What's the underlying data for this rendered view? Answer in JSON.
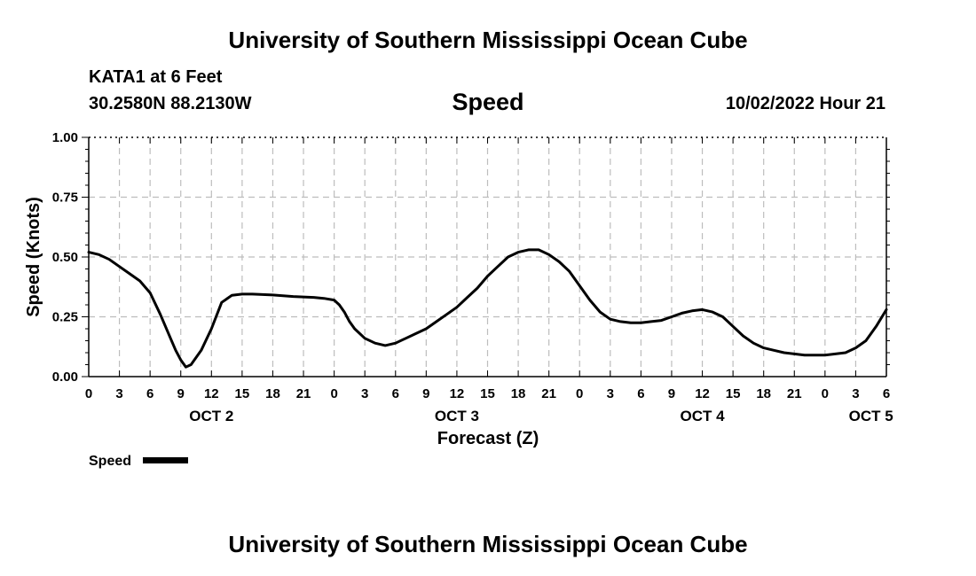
{
  "header": {
    "title": "University of Southern Mississippi Ocean Cube",
    "station": "KATA1 at 6 Feet",
    "coords": "30.2580N  88.2130W",
    "plot_title": "Speed",
    "date": "10/02/2022 Hour 21",
    "footer_title": "University of Southern Mississippi Ocean Cube"
  },
  "chart_data": {
    "type": "line",
    "title": "Speed",
    "xlabel": "Forecast (Z)",
    "ylabel": "Speed (Knots)",
    "ylim": [
      0,
      1.0
    ],
    "xlim": [
      0,
      78
    ],
    "yticks": [
      0.0,
      0.25,
      0.5,
      0.75,
      1.0
    ],
    "ytick_labels": [
      "0.00",
      "0.25",
      "0.50",
      "0.75",
      "1.00"
    ],
    "xtick_labels": [
      "0",
      "3",
      "6",
      "9",
      "12",
      "15",
      "18",
      "21",
      "0",
      "3",
      "6",
      "9",
      "12",
      "15",
      "18",
      "21",
      "0",
      "3",
      "6",
      "9",
      "12",
      "15",
      "18",
      "21",
      "0",
      "3",
      "6"
    ],
    "day_labels": [
      {
        "label": "OCT 2",
        "hour": 12
      },
      {
        "label": "OCT 3",
        "hour": 36
      },
      {
        "label": "OCT 4",
        "hour": 60
      },
      {
        "label": "OCT 5",
        "hour": 76.5
      }
    ],
    "grid": true,
    "legend": {
      "position": "bottom-left",
      "label": "Speed"
    },
    "series": [
      {
        "name": "Speed",
        "color": "#000000",
        "x": [
          0,
          1,
          2,
          3,
          4,
          5,
          6,
          7,
          8,
          8.5,
          9,
          9.5,
          10,
          11,
          12,
          13,
          14,
          15,
          16,
          17,
          18,
          19,
          20,
          21,
          22,
          23,
          24,
          24.5,
          25,
          25.5,
          26,
          27,
          28,
          29,
          30,
          31,
          32,
          33,
          34,
          35,
          36,
          37,
          38,
          39,
          40,
          41,
          42,
          43,
          44,
          45,
          46,
          47,
          48,
          49,
          50,
          51,
          52,
          53,
          54,
          55,
          56,
          57,
          58,
          59,
          60,
          61,
          62,
          63,
          64,
          65,
          66,
          67,
          68,
          69,
          70,
          71,
          72,
          73,
          74,
          75,
          76,
          77,
          78
        ],
        "values": [
          0.52,
          0.51,
          0.49,
          0.46,
          0.43,
          0.4,
          0.35,
          0.26,
          0.16,
          0.11,
          0.07,
          0.04,
          0.05,
          0.11,
          0.2,
          0.31,
          0.34,
          0.345,
          0.345,
          0.343,
          0.341,
          0.338,
          0.335,
          0.333,
          0.331,
          0.327,
          0.32,
          0.3,
          0.27,
          0.23,
          0.2,
          0.16,
          0.14,
          0.13,
          0.14,
          0.16,
          0.18,
          0.2,
          0.23,
          0.26,
          0.29,
          0.33,
          0.37,
          0.42,
          0.46,
          0.5,
          0.52,
          0.53,
          0.53,
          0.51,
          0.48,
          0.44,
          0.38,
          0.32,
          0.27,
          0.24,
          0.23,
          0.225,
          0.225,
          0.23,
          0.235,
          0.25,
          0.265,
          0.275,
          0.28,
          0.27,
          0.25,
          0.21,
          0.17,
          0.14,
          0.12,
          0.11,
          0.1,
          0.095,
          0.09,
          0.09,
          0.09,
          0.095,
          0.1,
          0.12,
          0.15,
          0.21,
          0.28
        ]
      }
    ]
  }
}
